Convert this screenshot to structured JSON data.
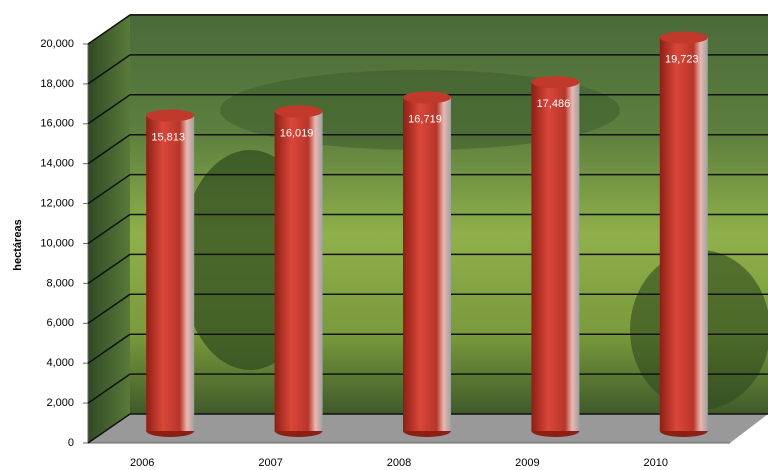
{
  "chart_data": {
    "type": "bar",
    "y_label": "hectáreas",
    "categories": [
      "2006",
      "2007",
      "2008",
      "2009",
      "2010"
    ],
    "values": [
      15813,
      16019,
      16719,
      17486,
      19723
    ],
    "value_labels": [
      "15,813",
      "16,019",
      "16,719",
      "17,486",
      "19,723"
    ],
    "color": "#c0392b",
    "ylim": [
      0,
      20000
    ],
    "yticks": [
      0,
      {
        "value": 2000,
        "label": "2,000"
      },
      {
        "value": 4000,
        "label": "4,000"
      },
      {
        "value": 6000,
        "label": "6,000"
      },
      {
        "value": 8000,
        "label": "8,000"
      },
      {
        "value": 10000,
        "label": "10,000"
      },
      {
        "value": 12000,
        "label": "12,000"
      },
      {
        "value": 14000,
        "label": "14,000"
      },
      {
        "value": 16000,
        "label": "16,000"
      },
      {
        "value": 18000,
        "label": "18,000"
      },
      {
        "value": 20000,
        "label": "20,000"
      }
    ],
    "grid": true
  }
}
